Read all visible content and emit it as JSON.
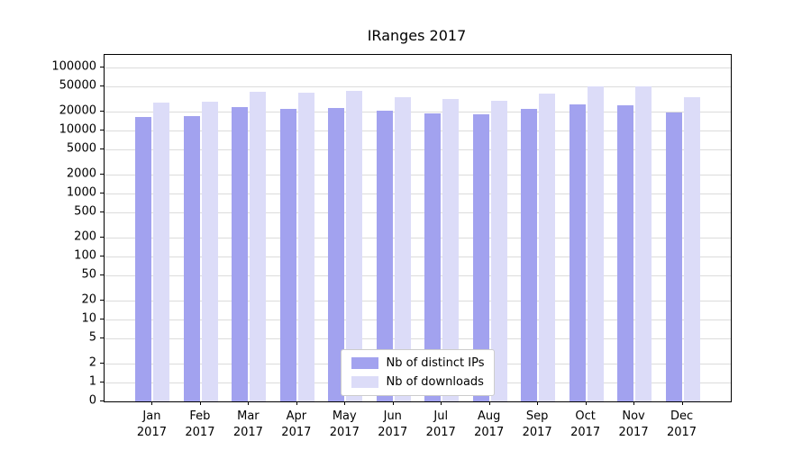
{
  "title": "IRanges 2017",
  "chart_data": {
    "type": "bar",
    "title": "IRanges 2017",
    "yscale": "log",
    "ylim": [
      0,
      160000
    ],
    "yticks": [
      0,
      1,
      2,
      5,
      10,
      20,
      50,
      100,
      200,
      500,
      1000,
      2000,
      5000,
      10000,
      20000,
      50000,
      100000
    ],
    "categories": [
      "Jan",
      "Feb",
      "Mar",
      "Apr",
      "May",
      "Jun",
      "Jul",
      "Aug",
      "Sep",
      "Oct",
      "Nov",
      "Dec"
    ],
    "category_year": "2017",
    "grid": true,
    "legend_position": "bottom-center",
    "series": [
      {
        "name": "Nb of distinct IPs",
        "color": "#a2a2ef",
        "values": [
          16500,
          17000,
          23500,
          22000,
          23000,
          20500,
          19000,
          18000,
          22000,
          26500,
          25500,
          19500
        ]
      },
      {
        "name": "Nb of downloads",
        "color": "#dcdcf8",
        "values": [
          28000,
          28500,
          41000,
          40000,
          43000,
          34000,
          31500,
          30000,
          39000,
          51000,
          51000,
          34000
        ]
      }
    ]
  }
}
